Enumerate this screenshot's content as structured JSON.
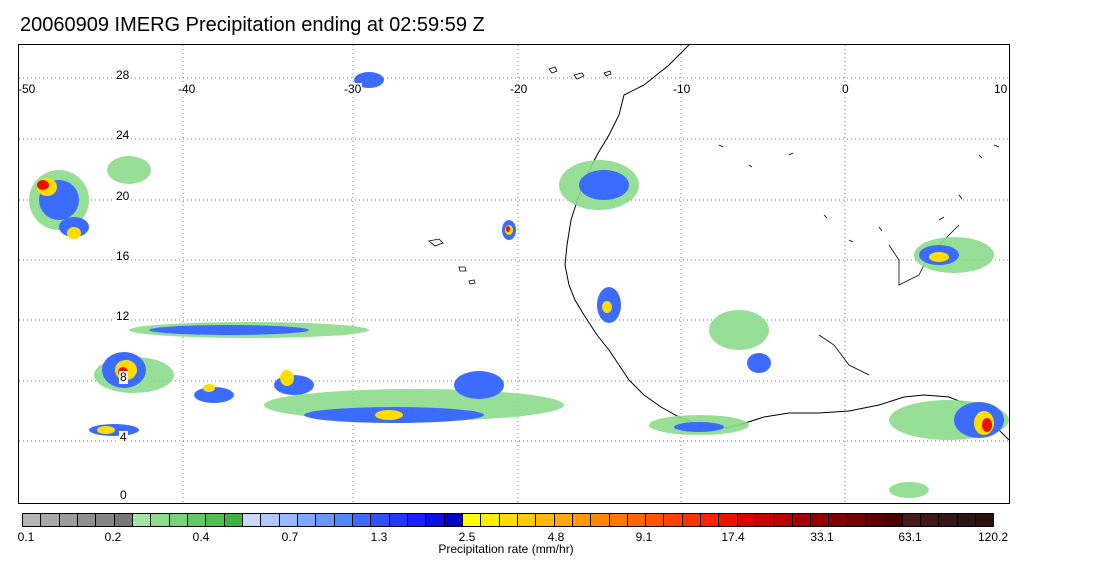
{
  "title": "20060909 IMERG Precipitation ending at 02:59:59 Z",
  "map": {
    "lon_labels": [
      "-50",
      "-40",
      "-30",
      "-20",
      "-10",
      "0",
      "10"
    ],
    "lat_labels": [
      "28",
      "24",
      "20",
      "16",
      "12",
      "8",
      "4",
      "0"
    ],
    "lon_range": [
      -50,
      10
    ],
    "lat_range": [
      0,
      30
    ],
    "gridlines": "dotted",
    "grid_lons": [
      -40,
      -30,
      -20,
      -10,
      0
    ],
    "grid_lats": [
      4,
      8,
      12,
      16,
      20,
      24,
      28
    ]
  },
  "colorbar": {
    "title": "Precipitation rate (mm/hr)",
    "tick_labels": [
      "0.1",
      "0.2",
      "0.4",
      "0.7",
      "1.3",
      "2.5",
      "4.8",
      "9.1",
      "17.4",
      "33.1",
      "63.1",
      "120.2"
    ],
    "colors": [
      "#b4b4b4",
      "#a8a8a8",
      "#9c9c9c",
      "#909090",
      "#848484",
      "#787878",
      "#a0e6a0",
      "#8cdc8c",
      "#78d278",
      "#64c864",
      "#50be50",
      "#3cb43c",
      "#c8d8ff",
      "#b0c8ff",
      "#98b8ff",
      "#80a8ff",
      "#6898ff",
      "#5088ff",
      "#3c6cff",
      "#3050ff",
      "#2438ff",
      "#1820ff",
      "#0c10e6",
      "#0000cc",
      "#ffff00",
      "#ffee00",
      "#ffdd00",
      "#ffcc00",
      "#ffbb00",
      "#ffaa00",
      "#ff9900",
      "#ff8800",
      "#ff7700",
      "#ff6600",
      "#ff5500",
      "#ff4400",
      "#ff3300",
      "#ff2200",
      "#ee1100",
      "#dd0000",
      "#cc0000",
      "#bb0000",
      "#a80000",
      "#960000",
      "#840000",
      "#720000",
      "#600000",
      "#4e0000",
      "#4a1a1a",
      "#401818",
      "#361616",
      "#2c1414",
      "#281010"
    ]
  }
}
